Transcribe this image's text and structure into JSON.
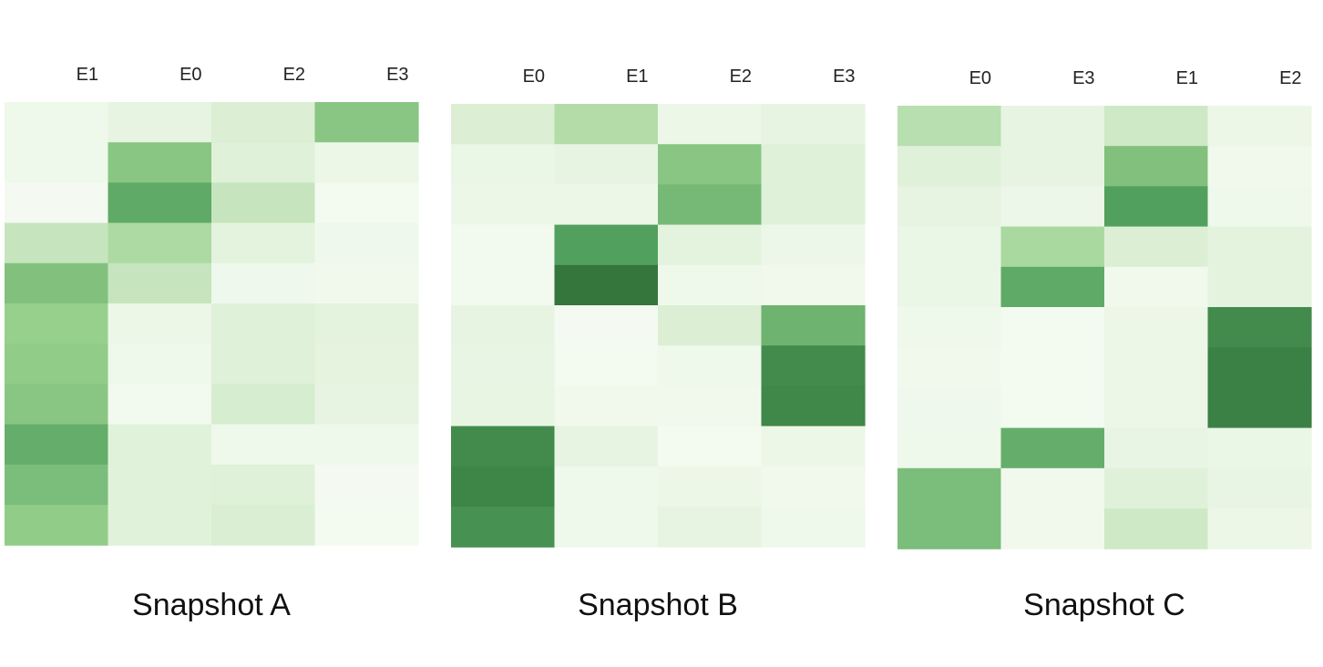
{
  "chart_data": [
    {
      "type": "heatmap",
      "title": "Snapshot A",
      "columns": [
        "E1",
        "E0",
        "E2",
        "E3"
      ],
      "rows": 11,
      "value_range": [
        0,
        1
      ],
      "colorscale": "greens",
      "values": [
        [
          0.08,
          0.15,
          0.25,
          0.55
        ],
        [
          0.08,
          0.55,
          0.22,
          0.1
        ],
        [
          0.03,
          0.7,
          0.33,
          0.04
        ],
        [
          0.33,
          0.42,
          0.18,
          0.07
        ],
        [
          0.58,
          0.33,
          0.07,
          0.06
        ],
        [
          0.5,
          0.1,
          0.22,
          0.18
        ],
        [
          0.52,
          0.08,
          0.22,
          0.17
        ],
        [
          0.55,
          0.05,
          0.27,
          0.15
        ],
        [
          0.68,
          0.2,
          0.08,
          0.08
        ],
        [
          0.6,
          0.2,
          0.22,
          0.03
        ],
        [
          0.52,
          0.2,
          0.26,
          0.04
        ]
      ]
    },
    {
      "type": "heatmap",
      "title": "Snapshot B",
      "columns": [
        "E0",
        "E1",
        "E2",
        "E3"
      ],
      "rows": 11,
      "value_range": [
        0,
        1
      ],
      "colorscale": "greens",
      "values": [
        [
          0.25,
          0.4,
          0.1,
          0.15
        ],
        [
          0.12,
          0.15,
          0.55,
          0.22
        ],
        [
          0.1,
          0.1,
          0.62,
          0.22
        ],
        [
          0.05,
          0.75,
          0.18,
          0.09
        ],
        [
          0.05,
          0.95,
          0.08,
          0.06
        ],
        [
          0.15,
          0.03,
          0.25,
          0.65
        ],
        [
          0.13,
          0.04,
          0.08,
          0.85
        ],
        [
          0.14,
          0.06,
          0.06,
          0.87
        ],
        [
          0.85,
          0.15,
          0.04,
          0.1
        ],
        [
          0.88,
          0.08,
          0.1,
          0.06
        ],
        [
          0.82,
          0.08,
          0.15,
          0.08
        ]
      ]
    },
    {
      "type": "heatmap",
      "title": "Snapshot C",
      "columns": [
        "E0",
        "E3",
        "E1",
        "E2"
      ],
      "rows": 11,
      "value_range": [
        0,
        1
      ],
      "colorscale": "greens",
      "values": [
        [
          0.38,
          0.15,
          0.3,
          0.1
        ],
        [
          0.22,
          0.15,
          0.58,
          0.06
        ],
        [
          0.15,
          0.09,
          0.75,
          0.08
        ],
        [
          0.12,
          0.43,
          0.25,
          0.18
        ],
        [
          0.12,
          0.7,
          0.06,
          0.18
        ],
        [
          0.08,
          0.04,
          0.1,
          0.85
        ],
        [
          0.06,
          0.04,
          0.1,
          0.9
        ],
        [
          0.07,
          0.04,
          0.1,
          0.9
        ],
        [
          0.08,
          0.68,
          0.13,
          0.12
        ],
        [
          0.6,
          0.06,
          0.22,
          0.13
        ],
        [
          0.6,
          0.06,
          0.3,
          0.1
        ]
      ]
    }
  ]
}
